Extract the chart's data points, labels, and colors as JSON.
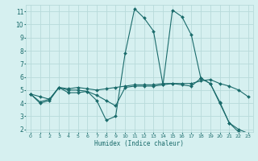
{
  "xlabel": "Humidex (Indice chaleur)",
  "ylabel": "",
  "bg_color": "#d6f0f0",
  "grid_color": "#b8dada",
  "line_color": "#1a6b6b",
  "xlim": [
    -0.5,
    23.5
  ],
  "ylim": [
    1.8,
    11.5
  ],
  "yticks": [
    2,
    3,
    4,
    5,
    6,
    7,
    8,
    9,
    10,
    11
  ],
  "xticks": [
    0,
    1,
    2,
    3,
    4,
    5,
    6,
    7,
    8,
    9,
    10,
    11,
    12,
    13,
    14,
    15,
    16,
    17,
    18,
    19,
    20,
    21,
    22,
    23
  ],
  "line1_x": [
    0,
    1,
    2,
    3,
    4,
    5,
    6,
    7,
    8,
    9,
    10,
    11,
    12,
    13,
    14,
    15,
    16,
    17,
    18,
    19,
    20,
    21,
    22,
    23
  ],
  "line1_y": [
    4.7,
    4.0,
    4.2,
    5.2,
    4.8,
    4.8,
    4.9,
    4.2,
    2.7,
    3.0,
    7.8,
    11.2,
    10.5,
    9.5,
    5.4,
    11.1,
    10.6,
    9.2,
    5.9,
    5.5,
    4.1,
    2.5,
    1.8,
    1.7
  ],
  "line2_x": [
    0,
    1,
    2,
    3,
    4,
    5,
    6,
    7,
    8,
    9,
    10,
    11,
    12,
    13,
    14,
    15,
    16,
    17,
    18,
    19,
    20,
    21,
    22,
    23
  ],
  "line2_y": [
    4.7,
    4.1,
    4.3,
    5.2,
    5.1,
    5.2,
    5.1,
    5.0,
    5.1,
    5.2,
    5.3,
    5.4,
    5.4,
    5.4,
    5.5,
    5.5,
    5.5,
    5.5,
    5.7,
    5.8,
    5.5,
    5.3,
    5.0,
    4.5
  ],
  "line3_x": [
    0,
    1,
    2,
    3,
    4,
    5,
    6,
    7,
    8,
    9,
    10,
    11,
    12,
    13,
    14,
    15,
    16,
    17,
    18,
    19,
    20,
    21,
    22,
    23
  ],
  "line3_y": [
    4.7,
    4.5,
    4.3,
    5.2,
    5.0,
    5.0,
    4.9,
    4.6,
    4.2,
    3.8,
    5.2,
    5.3,
    5.3,
    5.3,
    5.4,
    5.5,
    5.4,
    5.3,
    5.9,
    5.5,
    4.0,
    2.5,
    2.0,
    1.7
  ]
}
